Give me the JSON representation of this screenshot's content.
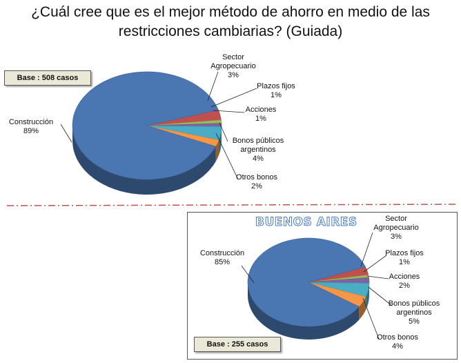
{
  "title_lines": [
    "¿Cuál cree que es el mejor método de ahorro en medio de las",
    "restricciones cambiarias? (Guiada)"
  ],
  "chart_data": [
    {
      "type": "pie",
      "base_label": "Base : 508 casos",
      "categories": [
        "Construcción",
        "Sector Agropecuario",
        "Plazos fijos",
        "Acciones",
        "Bonos públicos argentinos",
        "Otros bonos"
      ],
      "labels": [
        [
          "Construcción",
          "89%"
        ],
        [
          "Sector",
          "Agropecuario",
          "3%"
        ],
        [
          "Plazos fijos",
          "1%"
        ],
        [
          "Acciones",
          "1%"
        ],
        [
          "Bonos públicos",
          "argentinos",
          "4%"
        ],
        [
          "Otros bonos",
          "2%"
        ]
      ],
      "values": [
        89,
        3,
        1,
        1,
        4,
        2
      ],
      "colors": [
        "#4a76b2",
        "#c0504d",
        "#9bbb59",
        "#8064a2",
        "#4bacc6",
        "#f79646"
      ]
    },
    {
      "type": "pie",
      "region_title": "BUENOS AIRES",
      "base_label": "Base : 255 casos",
      "categories": [
        "Construcción",
        "Sector Agropecuario",
        "Plazos fijos",
        "Acciones",
        "Bonos públicos argentinos",
        "Otros bonos"
      ],
      "labels": [
        [
          "Construcción",
          "85%"
        ],
        [
          "Sector",
          "Agropecuario",
          "3%"
        ],
        [
          "Plazos fijos",
          "1%"
        ],
        [
          "Acciones",
          "2%"
        ],
        [
          "Bonos públicos",
          "argentinos",
          "5%"
        ],
        [
          "Otros bonos",
          "4%"
        ]
      ],
      "values": [
        85,
        3,
        1,
        2,
        5,
        4
      ],
      "colors": [
        "#4a76b2",
        "#c0504d",
        "#9bbb59",
        "#8064a2",
        "#4bacc6",
        "#f79646"
      ]
    }
  ],
  "separator_color": "#c0504d"
}
